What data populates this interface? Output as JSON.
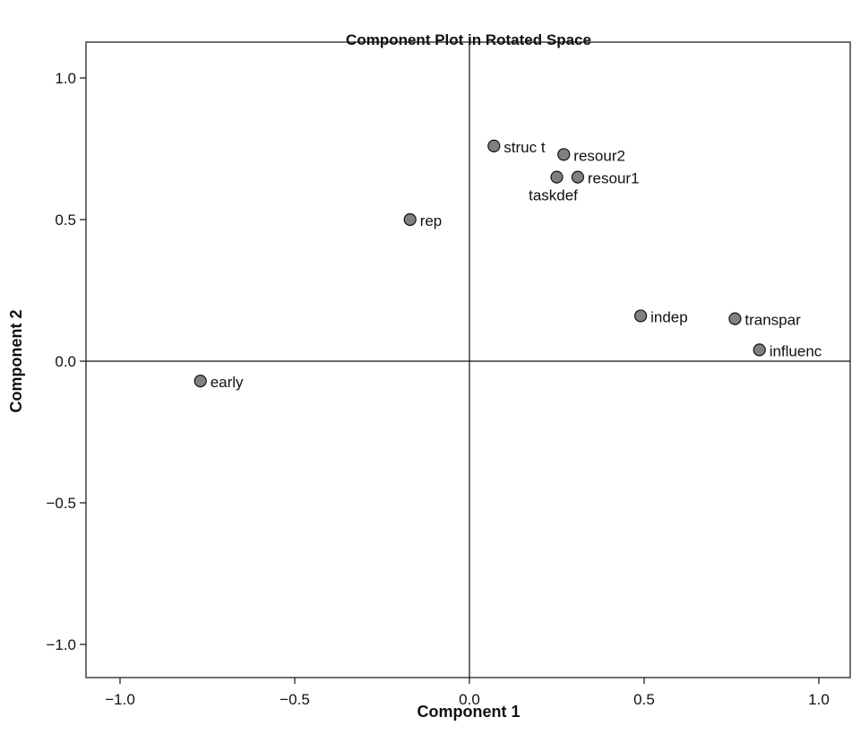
{
  "chart_data": {
    "type": "scatter",
    "title": "Component Plot in Rotated Space",
    "xlabel": "Component 1",
    "ylabel": "Component 2",
    "xlim": [
      -1.1,
      1.1
    ],
    "ylim": [
      -1.12,
      1.12
    ],
    "x_ticks": [
      -1.0,
      -0.5,
      0.0,
      0.5,
      1.0
    ],
    "x_tick_labels": [
      "−1.0",
      "−0.5",
      "0.0",
      "0.5",
      "1.0"
    ],
    "y_ticks": [
      1.0,
      0.5,
      0.0,
      -0.5,
      -1.0
    ],
    "y_tick_labels": [
      "1.0",
      "0.5",
      "0.0",
      "−0.5",
      "−1.0"
    ],
    "grid": false,
    "reference_lines": {
      "x": 0,
      "y": 0
    },
    "marker_color": "#808080",
    "points": [
      {
        "label": "struc t",
        "x": 0.07,
        "y": 0.76
      },
      {
        "label": "resour2",
        "x": 0.27,
        "y": 0.73
      },
      {
        "label": "taskdef",
        "x": 0.25,
        "y": 0.65
      },
      {
        "label": "resour1",
        "x": 0.31,
        "y": 0.65
      },
      {
        "label": "rep",
        "x": -0.17,
        "y": 0.5
      },
      {
        "label": "indep",
        "x": 0.49,
        "y": 0.16
      },
      {
        "label": "transpar",
        "x": 0.76,
        "y": 0.15
      },
      {
        "label": "influenc",
        "x": 0.83,
        "y": 0.04
      },
      {
        "label": "early",
        "x": -0.77,
        "y": -0.07
      }
    ]
  }
}
